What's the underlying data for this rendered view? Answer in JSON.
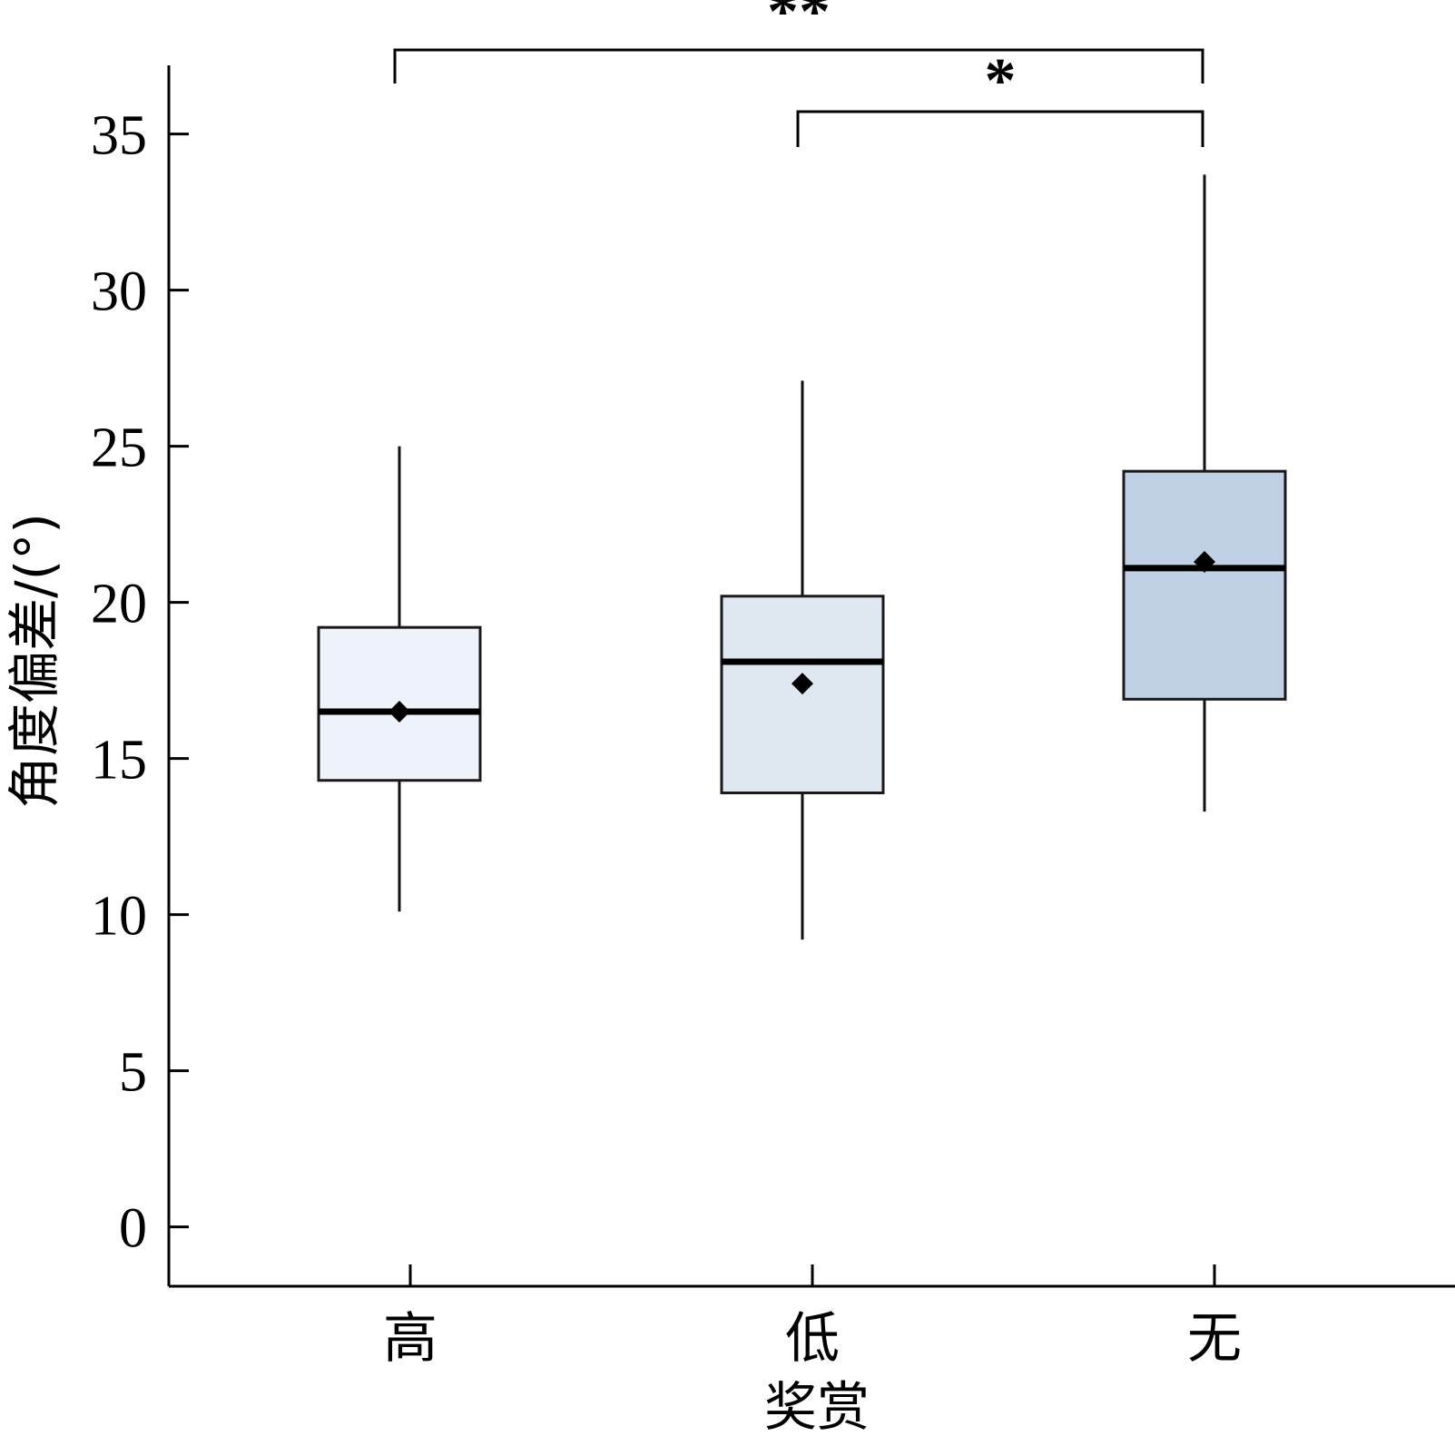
{
  "chart_data": {
    "type": "box",
    "xlabel": "奖赏",
    "ylabel": "角度偏差/(°)",
    "ylim": [
      -1.9,
      37.2
    ],
    "yticks": [
      0,
      5,
      10,
      15,
      20,
      25,
      30,
      35
    ],
    "grid": false,
    "legend": "none",
    "categories": [
      "高",
      "低",
      "无"
    ],
    "boxes": [
      {
        "category": "高",
        "whisker_low": 10.1,
        "q1": 14.3,
        "median": 16.5,
        "q3": 19.2,
        "whisker_high": 25.0,
        "mean": 16.5,
        "fill": "#eef3fb"
      },
      {
        "category": "低",
        "whisker_low": 9.2,
        "q1": 13.9,
        "median": 18.1,
        "q3": 20.2,
        "whisker_high": 27.1,
        "mean": 17.4,
        "fill": "#dfe7f1"
      },
      {
        "category": "无",
        "whisker_low": 13.3,
        "q1": 16.9,
        "median": 21.1,
        "q3": 24.2,
        "whisker_high": 33.7,
        "mean": 21.3,
        "fill": "#c0d0e5"
      }
    ],
    "significance": [
      {
        "from": "高",
        "to": "无",
        "label": "**"
      },
      {
        "from": "低",
        "to": "无",
        "label": "*"
      }
    ]
  }
}
